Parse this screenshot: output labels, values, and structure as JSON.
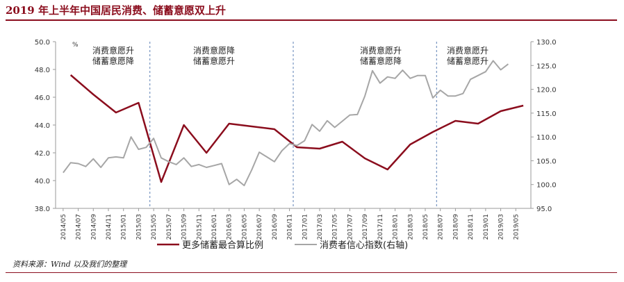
{
  "title": "2019 年上半年中国居民消费、储蓄意愿双上升",
  "source": "资料来源：Wind 以及我们的整理",
  "chart_data": {
    "type": "line",
    "y_left": {
      "min": 38.0,
      "max": 50.0,
      "step": 2.0,
      "unit_label": "%"
    },
    "y_right": {
      "min": 95.0,
      "max": 130.0,
      "step": 5.0
    },
    "x_ticks": [
      "2014/05",
      "2014/07",
      "2014/09",
      "2014/11",
      "2015/01",
      "2015/03",
      "2015/05",
      "2015/07",
      "2015/09",
      "2015/11",
      "2016/01",
      "2016/03",
      "2016/05",
      "2016/07",
      "2016/09",
      "2016/11",
      "2017/01",
      "2017/03",
      "2017/05",
      "2017/07",
      "2017/09",
      "2017/11",
      "2018/01",
      "2018/03",
      "2018/05",
      "2018/07",
      "2018/09",
      "2018/11",
      "2019/01",
      "2019/03",
      "2019/05"
    ],
    "vlines_after": [
      "2015/04",
      "2016/11",
      "2018/06"
    ],
    "annotations": [
      {
        "lines": [
          "消费意愿升",
          "储蓄意愿降"
        ]
      },
      {
        "lines": [
          "消费意愿降",
          "储蓄意愿升"
        ]
      },
      {
        "lines": [
          "消费意愿升",
          "储蓄意愿降"
        ]
      },
      {
        "lines": [
          "消费意愿升",
          "储蓄意愿升"
        ]
      }
    ],
    "series": [
      {
        "name": "更多储蓄最合算比例",
        "axis": "left",
        "color": "#8b0d1d",
        "points": [
          [
            "2014/06",
            47.6
          ],
          [
            "2014/09",
            46.2
          ],
          [
            "2014/12",
            44.9
          ],
          [
            "2015/03",
            45.6
          ],
          [
            "2015/06",
            39.9
          ],
          [
            "2015/09",
            44.0
          ],
          [
            "2015/12",
            42.0
          ],
          [
            "2016/03",
            44.1
          ],
          [
            "2016/06",
            43.9
          ],
          [
            "2016/09",
            43.7
          ],
          [
            "2016/12",
            42.4
          ],
          [
            "2017/03",
            42.3
          ],
          [
            "2017/06",
            42.8
          ],
          [
            "2017/09",
            41.6
          ],
          [
            "2017/12",
            40.8
          ],
          [
            "2018/03",
            42.6
          ],
          [
            "2018/06",
            43.5
          ],
          [
            "2018/09",
            44.3
          ],
          [
            "2018/12",
            44.1
          ],
          [
            "2019/03",
            45.0
          ],
          [
            "2019/06",
            45.4
          ]
        ]
      },
      {
        "name": "消费者信心指数(右轴)",
        "axis": "right",
        "color": "#a6a6a6",
        "points": [
          [
            "2014/05",
            102.5
          ],
          [
            "2014/06",
            104.6
          ],
          [
            "2014/07",
            104.4
          ],
          [
            "2014/08",
            103.8
          ],
          [
            "2014/09",
            105.4
          ],
          [
            "2014/10",
            103.6
          ],
          [
            "2014/11",
            105.6
          ],
          [
            "2014/12",
            105.8
          ],
          [
            "2015/01",
            105.6
          ],
          [
            "2015/02",
            110.0
          ],
          [
            "2015/03",
            107.4
          ],
          [
            "2015/04",
            107.8
          ],
          [
            "2015/05",
            109.7
          ],
          [
            "2015/06",
            105.6
          ],
          [
            "2015/07",
            104.8
          ],
          [
            "2015/08",
            104.2
          ],
          [
            "2015/09",
            105.6
          ],
          [
            "2015/10",
            103.8
          ],
          [
            "2015/11",
            104.2
          ],
          [
            "2015/12",
            103.6
          ],
          [
            "2016/01",
            104.0
          ],
          [
            "2016/02",
            104.4
          ],
          [
            "2016/03",
            100.0
          ],
          [
            "2016/04",
            101.1
          ],
          [
            "2016/05",
            99.8
          ],
          [
            "2016/06",
            103.1
          ],
          [
            "2016/07",
            106.8
          ],
          [
            "2016/08",
            105.8
          ],
          [
            "2016/09",
            104.8
          ],
          [
            "2016/10",
            107.1
          ],
          [
            "2016/11",
            108.6
          ],
          [
            "2016/12",
            108.2
          ],
          [
            "2017/01",
            109.2
          ],
          [
            "2017/02",
            112.6
          ],
          [
            "2017/03",
            111.2
          ],
          [
            "2017/04",
            113.4
          ],
          [
            "2017/05",
            112.0
          ],
          [
            "2017/06",
            113.3
          ],
          [
            "2017/07",
            114.6
          ],
          [
            "2017/08",
            114.7
          ],
          [
            "2017/09",
            118.6
          ],
          [
            "2017/10",
            123.9
          ],
          [
            "2017/11",
            121.3
          ],
          [
            "2017/12",
            122.6
          ],
          [
            "2018/01",
            122.3
          ],
          [
            "2018/02",
            124.0
          ],
          [
            "2018/03",
            122.3
          ],
          [
            "2018/04",
            122.9
          ],
          [
            "2018/05",
            122.9
          ],
          [
            "2018/06",
            118.2
          ],
          [
            "2018/07",
            119.8
          ],
          [
            "2018/08",
            118.6
          ],
          [
            "2018/09",
            118.6
          ],
          [
            "2018/10",
            119.1
          ],
          [
            "2018/11",
            122.1
          ],
          [
            "2018/12",
            122.9
          ],
          [
            "2019/01",
            123.7
          ],
          [
            "2019/02",
            126.0
          ],
          [
            "2019/03",
            124.1
          ],
          [
            "2019/04",
            125.3
          ]
        ]
      }
    ]
  }
}
